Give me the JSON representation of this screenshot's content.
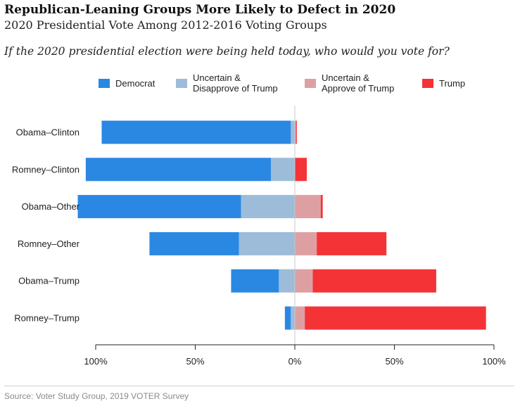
{
  "chart_data": {
    "type": "bar",
    "orientation": "horizontal-diverging",
    "title": "Republican-Leaning Groups More Likely to Defect in 2020",
    "subtitle": "2020 Presidential Vote Among 2012-2016 Voting Groups",
    "question": "If the 2020 presidential election were being held today, who would you vote for?",
    "source": "Source: Voter Study Group, 2019 VOTER Survey",
    "legend_position": "top",
    "categories": [
      "Obama-Clinton",
      "Romney-Clinton",
      "Obama-Other",
      "Romney-Other",
      "Obama-Trump",
      "Romney-Trump"
    ],
    "series": [
      {
        "name": "Democrat",
        "color": "#2a88e3",
        "side": "left",
        "values": [
          95,
          93,
          82,
          45,
          24,
          3
        ]
      },
      {
        "name": "Uncertain &\nDisapprove of Trump",
        "color": "#9dbcd9",
        "side": "left",
        "values": [
          2,
          12,
          27,
          28,
          8,
          2
        ]
      },
      {
        "name": "Uncertain &\nApprove of Trump",
        "color": "#de9fa3",
        "side": "right",
        "values": [
          0.5,
          0,
          13,
          11,
          9,
          5
        ]
      },
      {
        "name": "Trump",
        "color": "#f43337",
        "side": "right",
        "values": [
          0.5,
          6,
          1,
          35,
          62,
          91
        ]
      }
    ],
    "xlim": [
      -100,
      100
    ],
    "xticks": [
      -100,
      -50,
      0,
      50,
      100
    ],
    "xtick_labels": [
      "100%",
      "50%",
      "0%",
      "50%",
      "100%"
    ],
    "grid": false
  }
}
